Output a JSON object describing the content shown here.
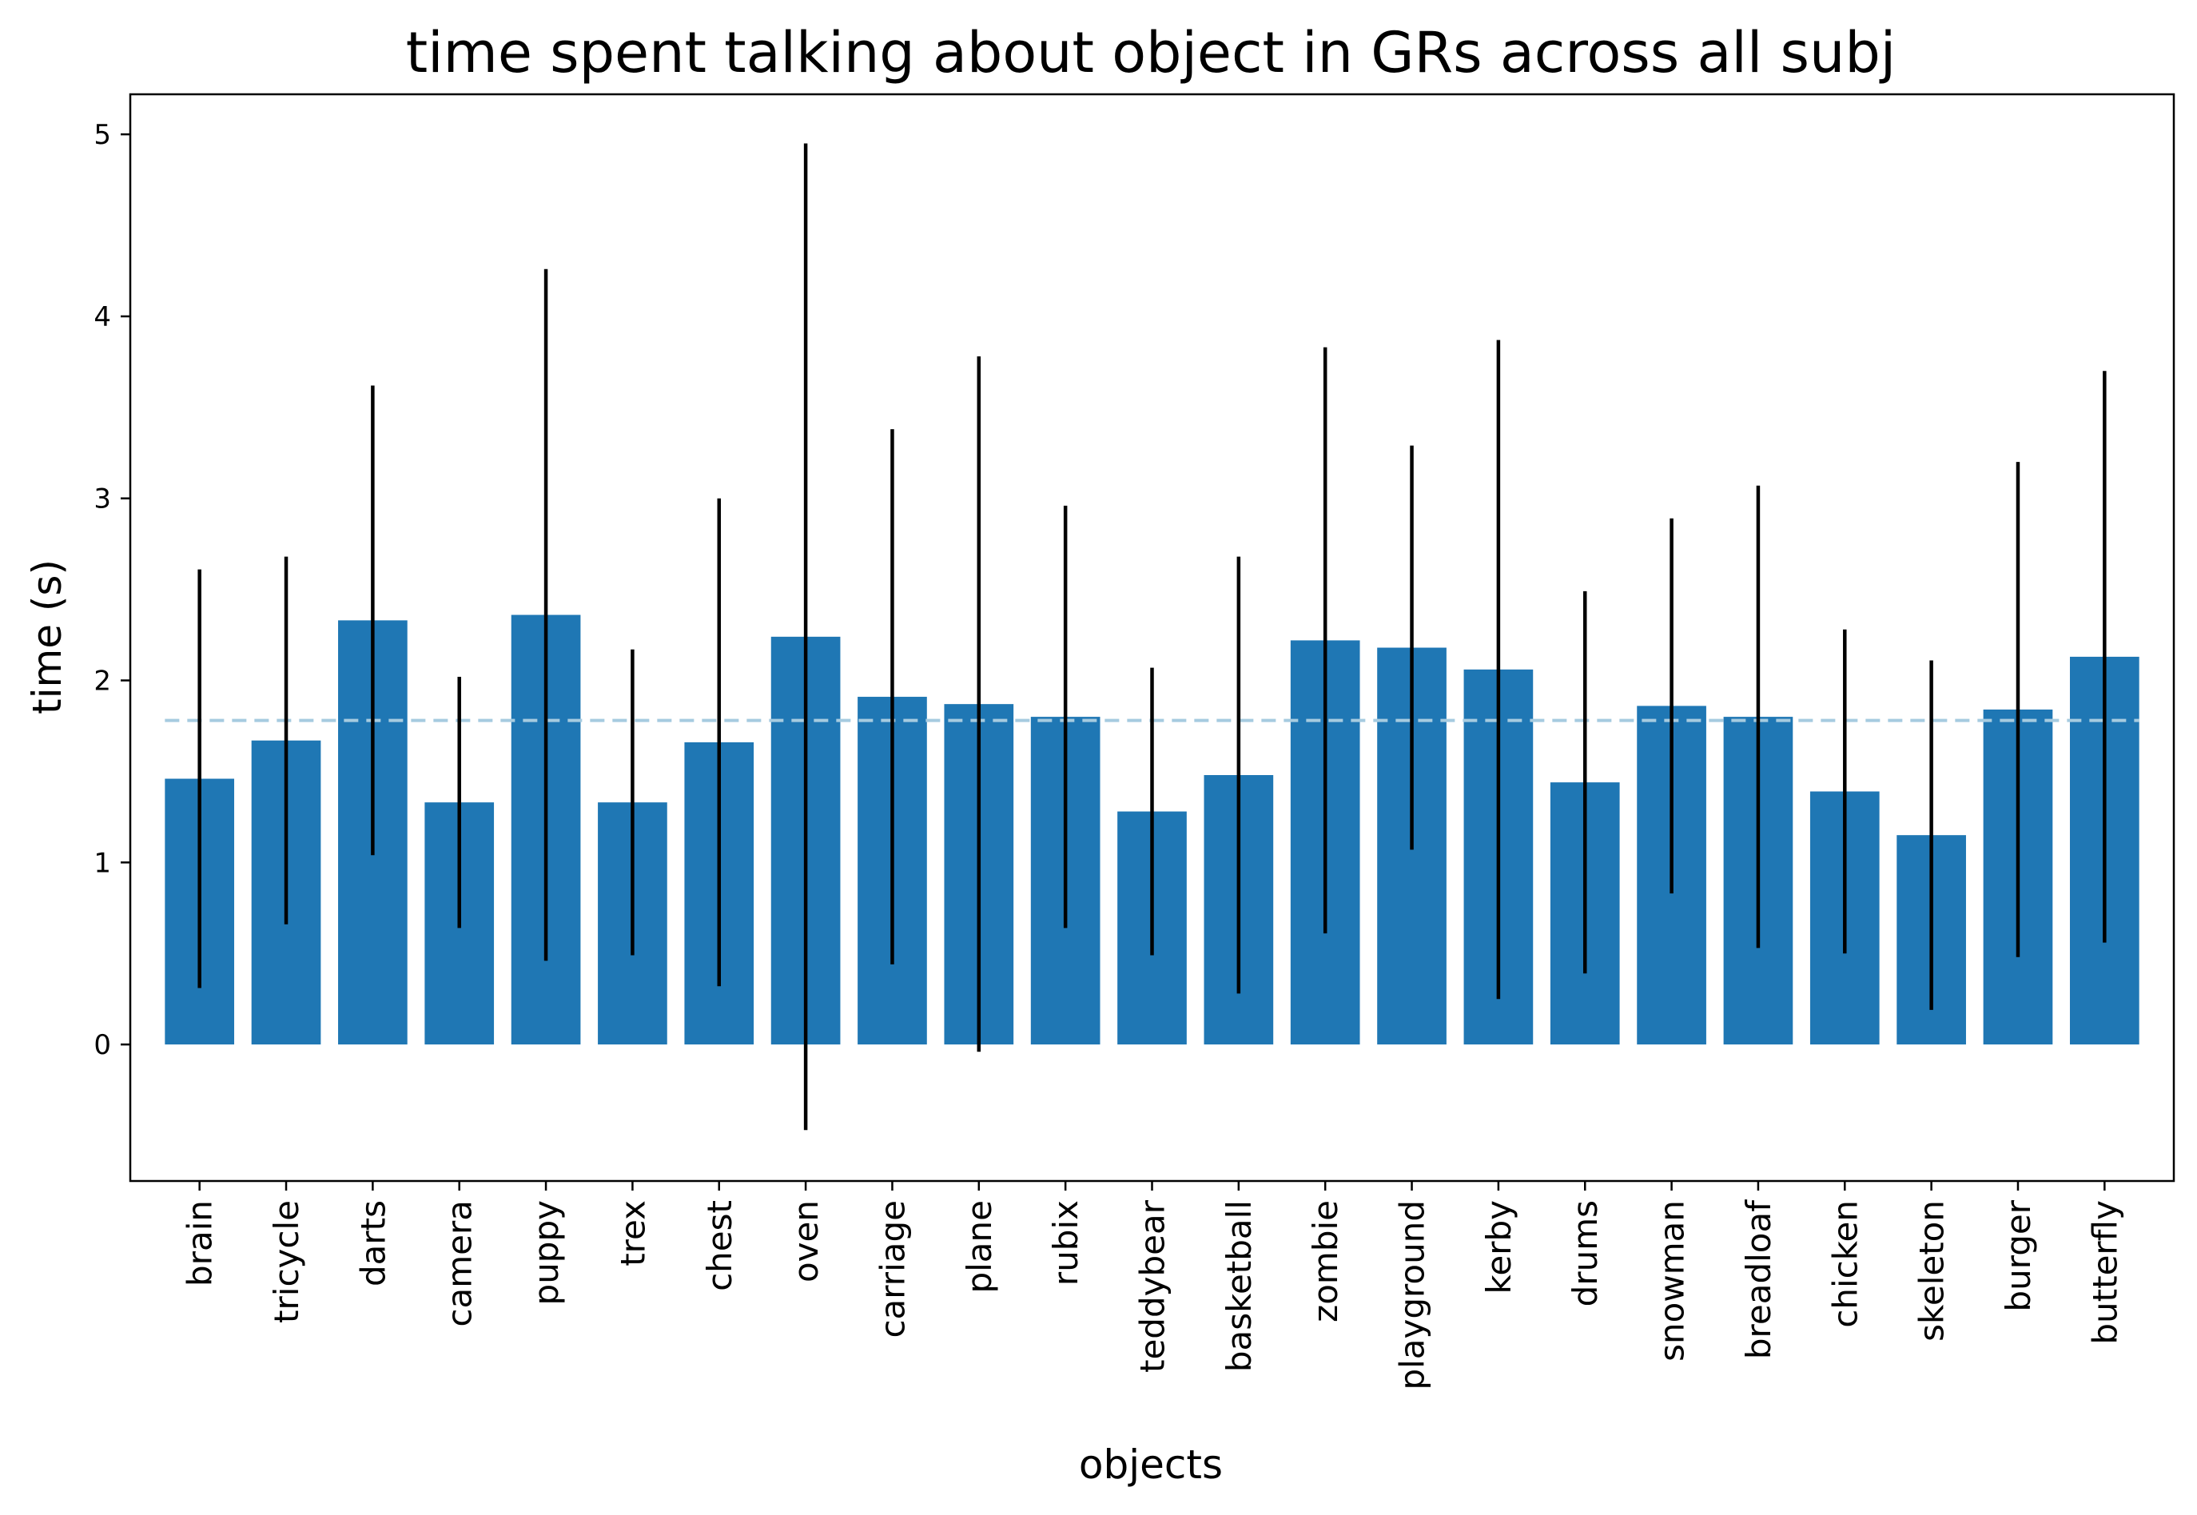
{
  "chart_data": {
    "type": "bar",
    "title": "time spent talking about object in GRs across all subj",
    "xlabel": "objects",
    "ylabel": "time (s)",
    "ylim": [
      -0.75,
      5.22
    ],
    "yticks": [
      0,
      1,
      2,
      3,
      4,
      5
    ],
    "grid": false,
    "categories": [
      "brain",
      "tricycle",
      "darts",
      "camera",
      "puppy",
      "trex",
      "chest",
      "oven",
      "carriage",
      "plane",
      "rubix",
      "teddybear",
      "basketball",
      "zombie",
      "playground",
      "kerby",
      "drums",
      "snowman",
      "breadloaf",
      "chicken",
      "skeleton",
      "burger",
      "butterfly"
    ],
    "values": [
      1.46,
      1.67,
      2.33,
      1.33,
      2.36,
      1.33,
      1.66,
      2.24,
      1.91,
      1.87,
      1.8,
      1.28,
      1.48,
      2.22,
      2.18,
      2.06,
      1.44,
      1.86,
      1.8,
      1.39,
      1.15,
      1.84,
      2.13
    ],
    "errors": [
      1.15,
      1.01,
      1.29,
      0.69,
      1.9,
      0.84,
      1.34,
      2.71,
      1.47,
      1.91,
      1.16,
      0.79,
      1.2,
      1.61,
      1.11,
      1.81,
      1.05,
      1.03,
      1.27,
      0.89,
      0.96,
      1.36,
      1.57
    ],
    "mean_line": 1.78,
    "colors": {
      "bar": "#1f77b4",
      "error": "#000000",
      "mean_line": "#a6cbe0"
    }
  }
}
